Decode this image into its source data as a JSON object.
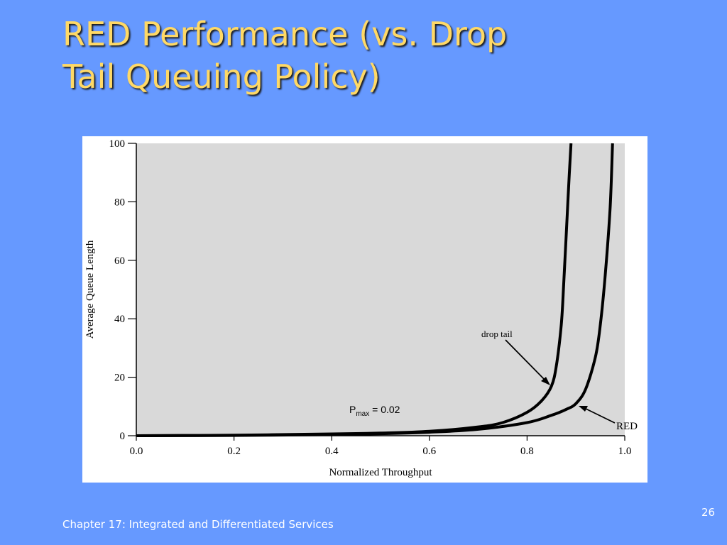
{
  "slide": {
    "title_line1": "RED Performance (vs. Drop",
    "title_line2": "Tail Queuing Policy)",
    "footer": "Chapter 17:  Integrated and Differentiated Services",
    "page_number": "26",
    "title_color": "#ffd966",
    "background_color": "#6699ff"
  },
  "chart_data": {
    "type": "line",
    "xlabel": "Normalized Throughput",
    "ylabel": "Average Queue Length",
    "xlim": [
      0.0,
      1.0
    ],
    "ylim": [
      0,
      100
    ],
    "x_ticks": [
      "0.0",
      "0.2",
      "0.4",
      "0.6",
      "0.8",
      "1.0"
    ],
    "y_ticks": [
      "0",
      "20",
      "40",
      "60",
      "80",
      "100"
    ],
    "grid": false,
    "background": "#d9d9d9",
    "series": [
      {
        "name": "drop tail",
        "x": [
          0.0,
          0.2,
          0.4,
          0.5,
          0.6,
          0.7,
          0.75,
          0.8,
          0.83,
          0.85,
          0.86,
          0.87,
          0.875,
          0.88,
          0.885,
          0.89
        ],
        "y": [
          0,
          0.2,
          0.6,
          0.9,
          1.5,
          3,
          4.5,
          8,
          12,
          17,
          24,
          38,
          52,
          68,
          85,
          100
        ]
      },
      {
        "name": "RED",
        "x": [
          0.0,
          0.2,
          0.4,
          0.5,
          0.6,
          0.7,
          0.8,
          0.85,
          0.88,
          0.9,
          0.92,
          0.94,
          0.95,
          0.96,
          0.97,
          0.975
        ],
        "y": [
          0,
          0.1,
          0.4,
          0.7,
          1.2,
          2.2,
          4.5,
          7,
          9,
          11,
          16,
          27,
          38,
          55,
          78,
          100
        ]
      }
    ],
    "annotations": [
      {
        "text_main": "P",
        "text_sub": "max",
        "text_rest": " = 0.02"
      },
      {
        "text": "drop tail",
        "series": "drop tail"
      },
      {
        "text": "RED",
        "series": "RED"
      }
    ]
  }
}
